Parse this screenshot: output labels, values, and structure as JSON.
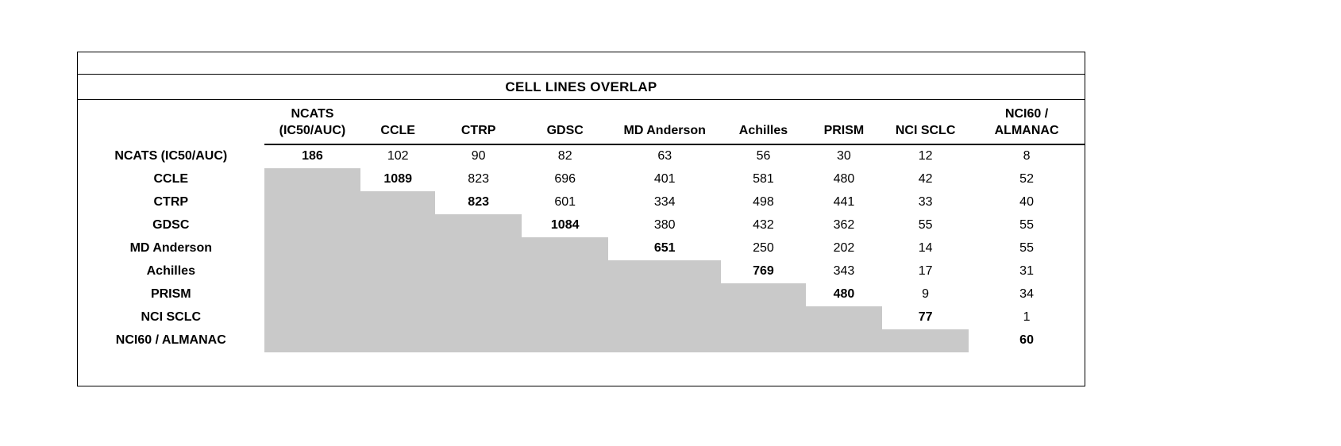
{
  "chart_data": {
    "type": "table",
    "title": "CELL LINES OVERLAP",
    "column_header_lines": [
      [
        "NCATS",
        "(IC50/AUC)"
      ],
      [
        "CCLE"
      ],
      [
        "CTRP"
      ],
      [
        "GDSC"
      ],
      [
        "MD Anderson"
      ],
      [
        "Achilles"
      ],
      [
        "PRISM"
      ],
      [
        "NCI SCLC"
      ],
      [
        "NCI60 /",
        "ALMANAC"
      ]
    ],
    "row_labels": [
      "NCATS (IC50/AUC)",
      "CCLE",
      "CTRP",
      "GDSC",
      "MD Anderson",
      "Achilles",
      "PRISM",
      "NCI SCLC",
      "NCI60 / ALMANAC"
    ],
    "matrix": [
      [
        186,
        102,
        90,
        82,
        63,
        56,
        30,
        12,
        8
      ],
      [
        null,
        1089,
        823,
        696,
        401,
        581,
        480,
        42,
        52
      ],
      [
        null,
        null,
        823,
        601,
        334,
        498,
        441,
        33,
        40
      ],
      [
        null,
        null,
        null,
        1084,
        380,
        432,
        362,
        55,
        55
      ],
      [
        null,
        null,
        null,
        null,
        651,
        250,
        202,
        14,
        55
      ],
      [
        null,
        null,
        null,
        null,
        null,
        769,
        343,
        17,
        31
      ],
      [
        null,
        null,
        null,
        null,
        null,
        null,
        480,
        9,
        34
      ],
      [
        null,
        null,
        null,
        null,
        null,
        null,
        null,
        77,
        1
      ],
      [
        null,
        null,
        null,
        null,
        null,
        null,
        null,
        null,
        60
      ]
    ],
    "style_hints": {
      "diagonal": "bold",
      "lower_triangle_fill": "#c9c9c9",
      "grid": "off",
      "header_underline": "solid"
    }
  },
  "colors": {
    "shaded_cell": "#c9c9c9",
    "border": "#000000",
    "text": "#000000",
    "background": "#ffffff"
  }
}
